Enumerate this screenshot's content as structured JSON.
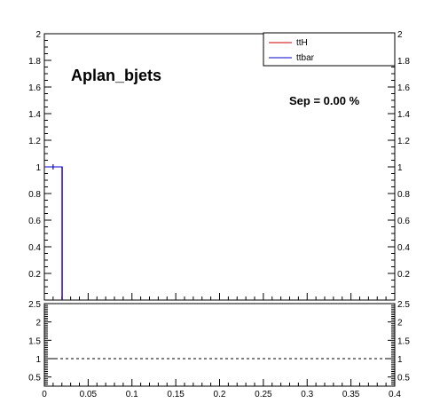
{
  "chart_data": [
    {
      "type": "line",
      "panel": "main",
      "title": "Aplan_bjets",
      "annotation": "Sep = 0.00 %",
      "xlim": [
        0,
        0.4
      ],
      "ylim": [
        0,
        2
      ],
      "x_ticks": [
        "0",
        "0.05",
        "0.1",
        "0.15",
        "0.2",
        "0.25",
        "0.3",
        "0.35",
        "0.4"
      ],
      "y_ticks": [
        "0.2",
        "0.4",
        "0.6",
        "0.8",
        "1",
        "1.2",
        "1.4",
        "1.6",
        "1.8",
        "2"
      ],
      "bins": 40,
      "legend_position": "top-right",
      "series": [
        {
          "name": "ttH",
          "color": "#cc0000",
          "bin_edges": [
            0,
            0.02
          ],
          "values": [
            1
          ]
        },
        {
          "name": "ttbar",
          "color": "#0000cc",
          "bin_edges": [
            0,
            0.02
          ],
          "values": [
            1
          ]
        }
      ]
    },
    {
      "type": "scatter",
      "panel": "ratio",
      "xlim": [
        0,
        0.4
      ],
      "ylim": [
        0.25,
        2.5
      ],
      "y_ticks": [
        "0.5",
        "1",
        "1.5",
        "2",
        "2.5"
      ],
      "reference_line": 1,
      "points": [
        {
          "x": 0.01,
          "y": 1
        }
      ]
    }
  ]
}
